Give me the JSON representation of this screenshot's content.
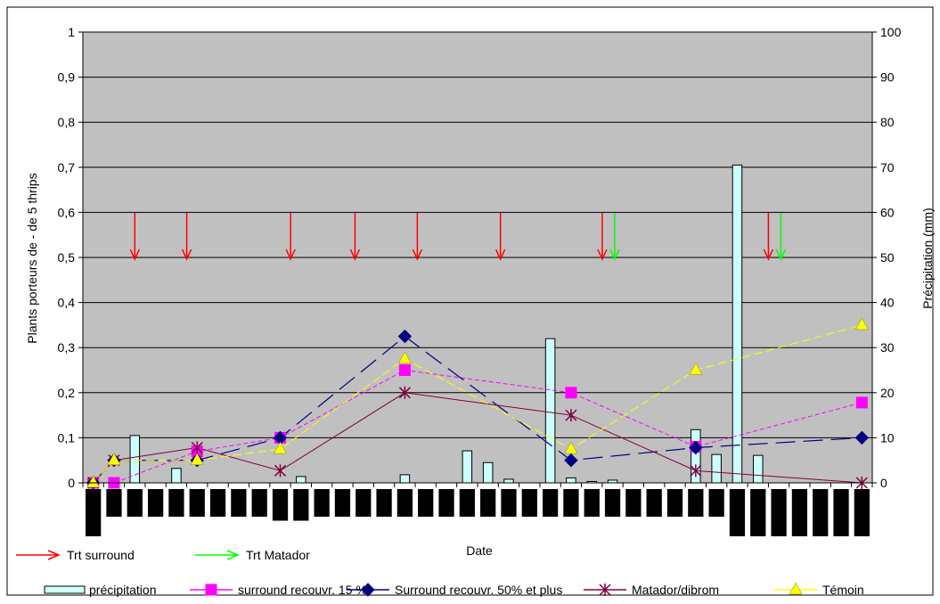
{
  "chart_data": {
    "type": "line",
    "title": "",
    "xlabel": "Date",
    "ylabel": "Plants porteurs de - de 5 thrips",
    "ylabel_right": "Précipitation (mm)",
    "ylim": [
      0,
      1
    ],
    "ylim_right": [
      0,
      100
    ],
    "yticks": [
      "0",
      "0,1",
      "0,2",
      "0,3",
      "0,4",
      "0,5",
      "0,6",
      "0,7",
      "0,8",
      "0,9",
      "1"
    ],
    "yticks_right": [
      "0",
      "10",
      "20",
      "30",
      "40",
      "50",
      "60",
      "70",
      "80",
      "90",
      "100"
    ],
    "n_dates": 38,
    "plot_background": "#c0c0c0",
    "grid": true,
    "precipitation": {
      "name": "précipitation",
      "color": "#ccffff",
      "values": [
        0,
        0,
        10.5,
        0,
        3.2,
        0,
        0,
        0,
        0,
        0,
        1.4,
        0,
        0,
        0,
        0,
        1.8,
        0,
        0,
        7.1,
        4.5,
        0.8,
        0,
        32,
        1.1,
        0.3,
        0.6,
        0,
        0,
        0,
        11.8,
        6.3,
        70.5,
        6.1,
        0,
        0,
        0,
        0,
        0
      ]
    },
    "series": [
      {
        "name": "surround recouvr. 15 %",
        "color": "#ff00ff",
        "dash": "5,3",
        "marker": "square",
        "points": [
          [
            0,
            0
          ],
          [
            1,
            0
          ],
          [
            5,
            0.07
          ],
          [
            9,
            0.1
          ],
          [
            15,
            0.25
          ],
          [
            23,
            0.2
          ],
          [
            29,
            0.08
          ],
          [
            37,
            0.178
          ]
        ]
      },
      {
        "name": "Surround recouvr. 50% et plus",
        "color": "#000080",
        "dash": "22,9",
        "marker": "diamond",
        "points": [
          [
            0,
            0
          ],
          [
            1,
            0.05
          ],
          [
            5,
            0.05
          ],
          [
            9,
            0.1
          ],
          [
            15,
            0.325
          ],
          [
            23,
            0.05
          ],
          [
            29,
            0.078
          ],
          [
            37,
            0.1
          ]
        ]
      },
      {
        "name": "Matador/dibrom",
        "color": "#800040",
        "dash": "",
        "marker": "asterisk",
        "points": [
          [
            0,
            0
          ],
          [
            1,
            0.05
          ],
          [
            5,
            0.078
          ],
          [
            9,
            0.027
          ],
          [
            15,
            0.2
          ],
          [
            23,
            0.15
          ],
          [
            29,
            0.027
          ],
          [
            37,
            0
          ]
        ]
      },
      {
        "name": "Témoin",
        "color": "#ffff00",
        "dash": "10,4",
        "marker": "triangle",
        "points": [
          [
            0,
            0
          ],
          [
            1,
            0.05
          ],
          [
            5,
            0.05
          ],
          [
            9,
            0.075
          ],
          [
            15,
            0.275
          ],
          [
            23,
            0.075
          ],
          [
            29,
            0.25
          ],
          [
            37,
            0.35
          ]
        ]
      }
    ],
    "treatment_arrows": [
      {
        "name": "Trt surround",
        "color": "#ff0000",
        "dates": [
          2,
          4.5,
          9.5,
          12.6,
          15.6,
          19.6,
          24.5,
          32.5
        ]
      },
      {
        "name": "Trt Matador",
        "color": "#00ff00",
        "dates": [
          25.1,
          33.1
        ]
      }
    ],
    "date_label_lengths": [
      1,
      0.6,
      0.6,
      0.6,
      0.6,
      0.6,
      0.6,
      0.6,
      0.6,
      0.7,
      0.7,
      0.6,
      0.6,
      0.6,
      0.6,
      0.6,
      0.6,
      0.6,
      0.6,
      0.6,
      0.6,
      0.6,
      0.6,
      0.6,
      0.6,
      0.6,
      0.6,
      0.6,
      0.6,
      0.6,
      0.6,
      1,
      1,
      1,
      1,
      1,
      1,
      1
    ],
    "legend_position": "bottom"
  }
}
